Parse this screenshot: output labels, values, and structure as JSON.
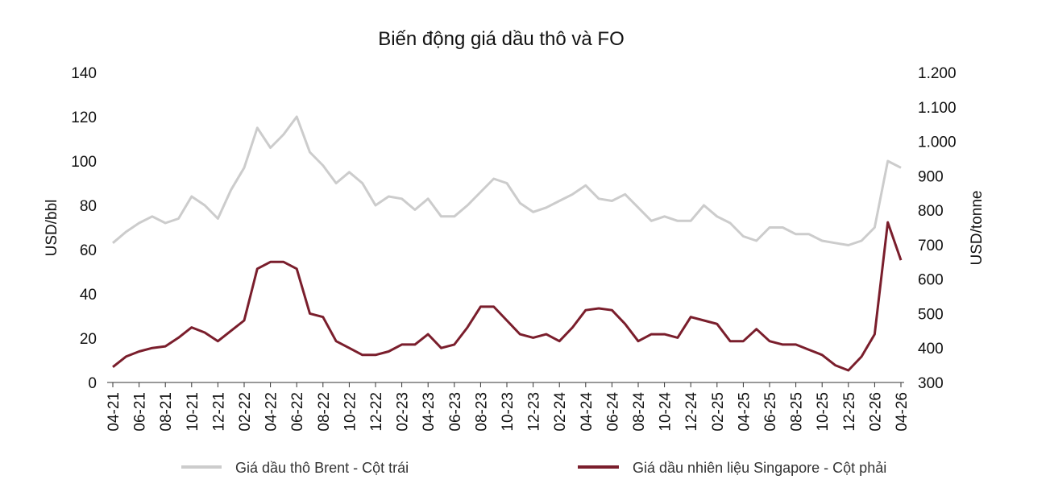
{
  "chart_data": {
    "type": "line",
    "title": "Biến động giá dầu thô và FO",
    "y_left": {
      "label": "USD/bbl",
      "ylim": [
        0,
        140
      ],
      "ticks": [
        0,
        20,
        40,
        60,
        80,
        100,
        120,
        140
      ],
      "tick_labels": [
        "0",
        "20",
        "40",
        "60",
        "80",
        "100",
        "120",
        "140"
      ]
    },
    "y_right": {
      "label": "USD/tonne",
      "ylim": [
        300,
        1200
      ],
      "ticks": [
        300,
        400,
        500,
        600,
        700,
        800,
        900,
        1000,
        1100,
        1200
      ],
      "tick_labels": [
        "300",
        "400",
        "500",
        "600",
        "700",
        "800",
        "900",
        "1.000",
        "1.100",
        "1.200"
      ]
    },
    "x_tick_labels": [
      "04-21",
      "06-21",
      "08-21",
      "10-21",
      "12-21",
      "02-22",
      "04-22",
      "06-22",
      "08-22",
      "10-22",
      "12-22",
      "02-23",
      "04-23",
      "06-23",
      "08-23",
      "10-23",
      "12-23",
      "02-24",
      "04-24",
      "06-24",
      "08-24",
      "10-24",
      "12-24",
      "02-25",
      "04-25",
      "06-25",
      "08-25",
      "10-25",
      "12-25",
      "02-26",
      "04-26"
    ],
    "legend_position": "bottom",
    "grid": false,
    "x": [
      "2021-04",
      "2021-05",
      "2021-06",
      "2021-07",
      "2021-08",
      "2021-09",
      "2021-10",
      "2021-11",
      "2021-12",
      "2022-01",
      "2022-02",
      "2022-03",
      "2022-04",
      "2022-05",
      "2022-06",
      "2022-07",
      "2022-08",
      "2022-09",
      "2022-10",
      "2022-11",
      "2022-12",
      "2023-01",
      "2023-02",
      "2023-03",
      "2023-04",
      "2023-05",
      "2023-06",
      "2023-07",
      "2023-08",
      "2023-09",
      "2023-10",
      "2023-11",
      "2023-12",
      "2024-01",
      "2024-02",
      "2024-03",
      "2024-04",
      "2024-05",
      "2024-06",
      "2024-07",
      "2024-08",
      "2024-09",
      "2024-10",
      "2024-11",
      "2024-12",
      "2025-01",
      "2025-02",
      "2025-03",
      "2025-04",
      "2025-05",
      "2025-06",
      "2025-07",
      "2025-08",
      "2025-09",
      "2025-10",
      "2025-11",
      "2025-12",
      "2026-01",
      "2026-02",
      "2026-03",
      "2026-04"
    ],
    "series": [
      {
        "name": "Giá dầu thô Brent - Cột trái",
        "axis": "left",
        "color": "#cccccc",
        "values": [
          63,
          68,
          72,
          75,
          72,
          74,
          84,
          80,
          74,
          87,
          97,
          115,
          106,
          112,
          120,
          104,
          98,
          90,
          95,
          90,
          80,
          84,
          83,
          78,
          83,
          75,
          75,
          80,
          86,
          92,
          90,
          81,
          77,
          79,
          82,
          85,
          89,
          83,
          82,
          85,
          79,
          73,
          75,
          73,
          73,
          80,
          75,
          72,
          66,
          64,
          70,
          70,
          67,
          67,
          64,
          63,
          62,
          64,
          70,
          100,
          97
        ],
        "values_approx_by_month": true
      },
      {
        "name": "Giá dầu nhiên liệu Singapore - Cột phải",
        "axis": "right",
        "color": "#7a1e2c",
        "values": [
          345,
          375,
          390,
          400,
          405,
          430,
          460,
          445,
          420,
          450,
          480,
          630,
          650,
          650,
          630,
          500,
          490,
          420,
          400,
          380,
          380,
          390,
          410,
          410,
          440,
          400,
          410,
          460,
          520,
          520,
          480,
          440,
          430,
          440,
          420,
          460,
          510,
          515,
          510,
          470,
          420,
          440,
          440,
          430,
          490,
          480,
          470,
          420,
          420,
          455,
          420,
          410,
          410,
          395,
          380,
          350,
          335,
          375,
          440,
          765,
          655
        ],
        "values_approx_by_month": true
      }
    ]
  }
}
